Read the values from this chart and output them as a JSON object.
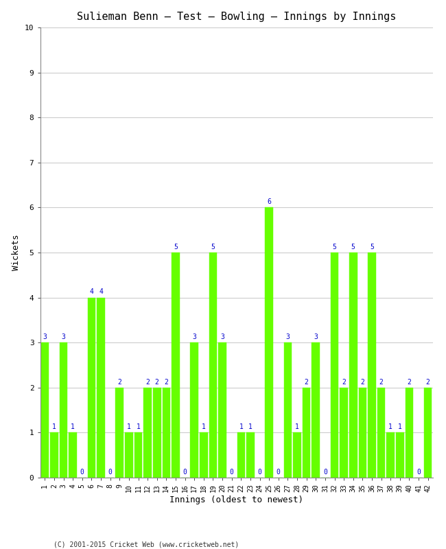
{
  "title": "Sulieman Benn – Test – Bowling – Innings by Innings",
  "xlabel": "Innings (oldest to newest)",
  "ylabel": "Wickets",
  "wickets": [
    3,
    1,
    3,
    1,
    0,
    4,
    4,
    0,
    2,
    1,
    1,
    2,
    2,
    2,
    5,
    0,
    3,
    1,
    5,
    3,
    0,
    1,
    1,
    0,
    6,
    0,
    3,
    1,
    2,
    3,
    0,
    5,
    2,
    5,
    2,
    5,
    2,
    1,
    1,
    2,
    0,
    2
  ],
  "innings": [
    1,
    2,
    3,
    4,
    5,
    6,
    7,
    8,
    9,
    10,
    11,
    12,
    13,
    14,
    15,
    16,
    17,
    18,
    19,
    20,
    21,
    22,
    23,
    24,
    25,
    26,
    27,
    28,
    29,
    30,
    31,
    32,
    33,
    34,
    35,
    36,
    37,
    38,
    39,
    40,
    41,
    42
  ],
  "bar_color": "#66ff00",
  "bar_edge_color": "#66ff00",
  "label_color": "#0000cc",
  "background_color": "#ffffff",
  "grid_color": "#cccccc",
  "ylim": [
    0,
    10
  ],
  "yticks": [
    0,
    1,
    2,
    3,
    4,
    5,
    6,
    7,
    8,
    9,
    10
  ],
  "label_fontsize": 7,
  "title_fontsize": 11,
  "axis_label_fontsize": 9,
  "tick_fontsize": 7,
  "footer": "(C) 2001-2015 Cricket Web (www.cricketweb.net)"
}
